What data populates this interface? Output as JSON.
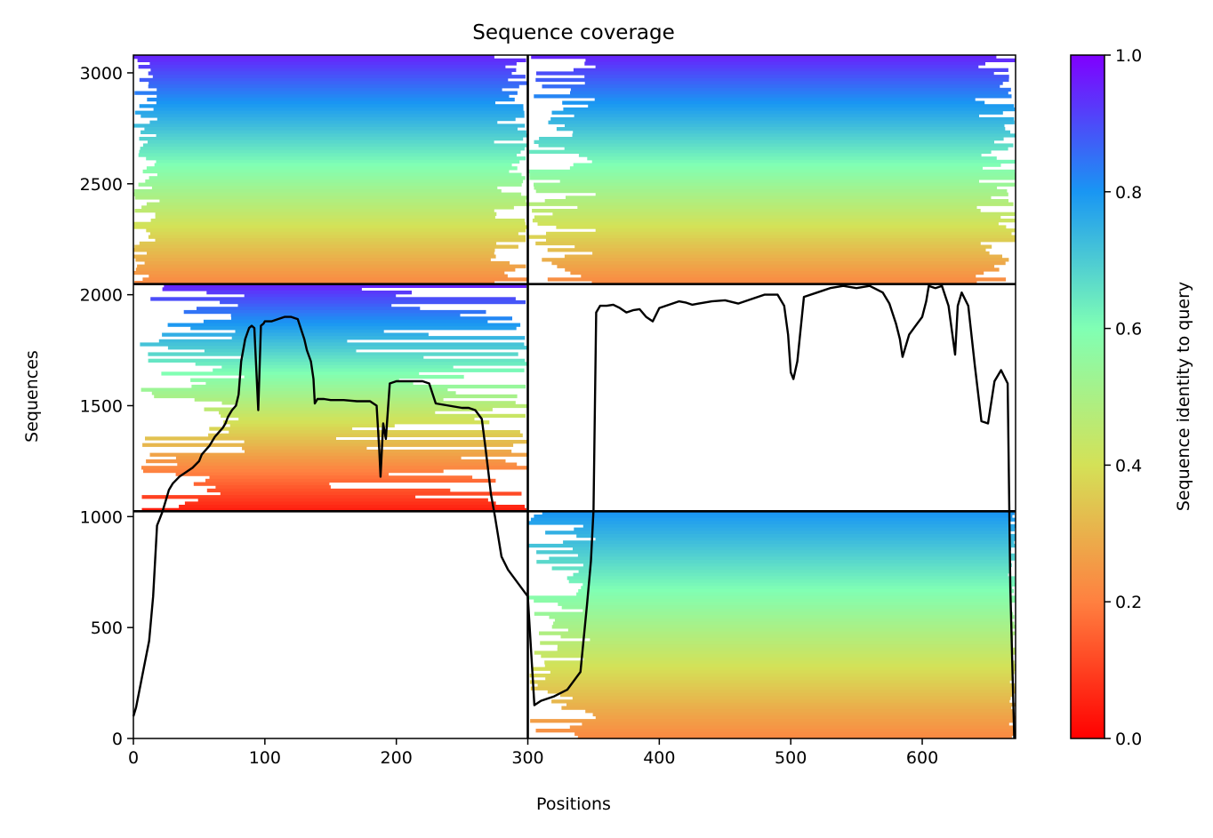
{
  "chart_data": {
    "type": "heatmap",
    "title": "Sequence coverage",
    "xlabel": "Positions",
    "ylabel": "Sequences",
    "xlim": [
      0,
      671
    ],
    "ylim": [
      0,
      3080
    ],
    "x_ticks": [
      0,
      100,
      200,
      300,
      400,
      500,
      600
    ],
    "y_ticks": [
      0,
      500,
      1000,
      1500,
      2000,
      2500,
      3000
    ],
    "grid": false,
    "colorbar": {
      "label": "Sequence identity to query",
      "colormap": "rainbow_r",
      "range": [
        0.0,
        1.0
      ],
      "ticks": [
        "0.0",
        "0.2",
        "0.4",
        "0.6",
        "0.8",
        "1.0"
      ],
      "colors": [
        "#ff0000",
        "#ff8040",
        "#d4e157",
        "#80ffb4",
        "#1996f3",
        "#8000ff"
      ]
    },
    "block_dividers": {
      "x": [
        300
      ],
      "y": [
        1024,
        2048
      ]
    },
    "blocks": [
      {
        "name": "block-1-1",
        "x": [
          0,
          300
        ],
        "y": [
          2048,
          3080
        ],
        "identity_top": 0.95,
        "identity_bottom": 0.22,
        "start_min": 0,
        "start_max": 20,
        "end_min": 270,
        "end_max": 300
      },
      {
        "name": "block-1-2",
        "x": [
          300,
          671
        ],
        "y": [
          2048,
          3080
        ],
        "identity_top": 0.95,
        "identity_bottom": 0.22,
        "start_min": 300,
        "start_max": 352,
        "end_min": 640,
        "end_max": 671
      },
      {
        "name": "block-2-1",
        "x": [
          0,
          300
        ],
        "y": [
          1024,
          2048
        ],
        "identity_top": 0.95,
        "identity_bottom": 0.05,
        "start_min": 5,
        "start_max": 90,
        "end_min": 138,
        "end_max": 300
      },
      {
        "name": "block-2-2",
        "x": [
          300,
          671
        ],
        "y": [
          1024,
          2048
        ],
        "identity_top": 0.0,
        "identity_bottom": 0.0,
        "start_min": 300,
        "start_max": 300,
        "end_min": 300,
        "end_max": 300
      },
      {
        "name": "block-3-1",
        "x": [
          0,
          300
        ],
        "y": [
          0,
          1024
        ],
        "identity_top": 0.0,
        "identity_bottom": 0.0,
        "start_min": 0,
        "start_max": 0,
        "end_min": 0,
        "end_max": 0
      },
      {
        "name": "block-3-2",
        "x": [
          300,
          671
        ],
        "y": [
          0,
          1024
        ],
        "identity_top": 0.8,
        "identity_bottom": 0.22,
        "start_min": 300,
        "start_max": 352,
        "end_min": 665,
        "end_max": 671
      }
    ],
    "series": [
      {
        "type": "line",
        "color": "#000000",
        "x": [
          0,
          2,
          5,
          8,
          12,
          15,
          18,
          20,
          22,
          25,
          27,
          30,
          35,
          40,
          45,
          50,
          52,
          55,
          58,
          60,
          62,
          65,
          68,
          70,
          72,
          75,
          78,
          80,
          82,
          85,
          88,
          90,
          92,
          95,
          97,
          99,
          100,
          102,
          105,
          110,
          115,
          120,
          125,
          130,
          132,
          135,
          137,
          138,
          140,
          145,
          150,
          160,
          170,
          180,
          185,
          187,
          188,
          190,
          192,
          195,
          200,
          210,
          220,
          225,
          230,
          240,
          250,
          255,
          260,
          265,
          268,
          270,
          272,
          275,
          280,
          285,
          290,
          295,
          300,
          305,
          310,
          320,
          330,
          340,
          345,
          348,
          350,
          352,
          355,
          360,
          365,
          370,
          375,
          380,
          385,
          390,
          395,
          400,
          405,
          410,
          415,
          420,
          425,
          430,
          440,
          450,
          460,
          470,
          480,
          490,
          495,
          498,
          500,
          502,
          505,
          510,
          520,
          530,
          540,
          550,
          560,
          570,
          575,
          580,
          583,
          585,
          590,
          595,
          600,
          603,
          605,
          610,
          615,
          620,
          625,
          627,
          630,
          635,
          640,
          645,
          650,
          655,
          660,
          665,
          667,
          670
        ],
        "y": [
          100,
          140,
          230,
          320,
          440,
          640,
          960,
          990,
          1020,
          1080,
          1120,
          1150,
          1180,
          1200,
          1220,
          1250,
          1280,
          1300,
          1320,
          1340,
          1360,
          1380,
          1400,
          1420,
          1450,
          1480,
          1500,
          1550,
          1700,
          1800,
          1850,
          1860,
          1850,
          1480,
          1860,
          1870,
          1880,
          1880,
          1880,
          1890,
          1900,
          1900,
          1890,
          1800,
          1750,
          1700,
          1620,
          1510,
          1530,
          1530,
          1525,
          1525,
          1520,
          1520,
          1500,
          1300,
          1180,
          1420,
          1350,
          1600,
          1610,
          1610,
          1610,
          1600,
          1510,
          1500,
          1490,
          1490,
          1480,
          1440,
          1300,
          1200,
          1100,
          1000,
          820,
          760,
          720,
          680,
          640,
          150,
          170,
          190,
          220,
          300,
          600,
          800,
          1030,
          1920,
          1950,
          1950,
          1955,
          1940,
          1920,
          1930,
          1935,
          1900,
          1880,
          1940,
          1950,
          1960,
          1970,
          1965,
          1955,
          1960,
          1970,
          1975,
          1960,
          1980,
          2000,
          2000,
          1950,
          1820,
          1650,
          1620,
          1700,
          1990,
          2010,
          2030,
          2040,
          2030,
          2040,
          2010,
          1960,
          1870,
          1800,
          1720,
          1820,
          1860,
          1900,
          1970,
          2040,
          2030,
          2040,
          1950,
          1730,
          1950,
          2010,
          1950,
          1680,
          1430,
          1420,
          1610,
          1660,
          1600,
          680,
          0
        ]
      }
    ]
  }
}
